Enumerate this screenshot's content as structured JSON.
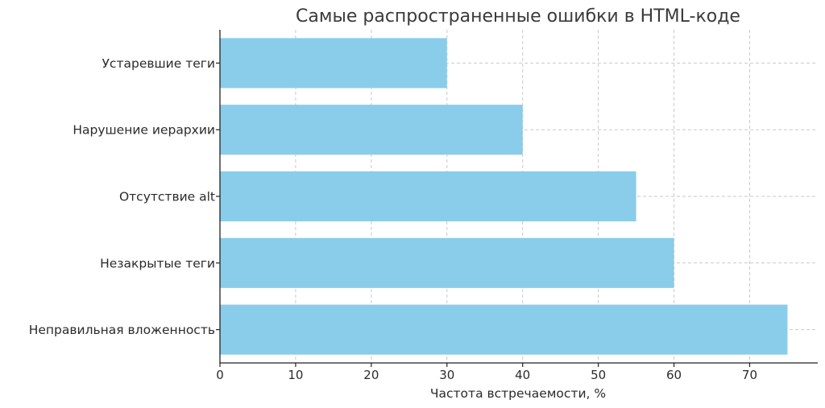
{
  "chart_data": {
    "type": "bar",
    "orientation": "horizontal",
    "title": "Самые распространенные ошибки в HTML-коде",
    "xlabel": "Частота встречаемости, %",
    "ylabel": "",
    "categories": [
      "Неправильная вложенность",
      "Незакрытые теги",
      "Отсутствие alt",
      "Нарушение иерархии",
      "Устаревшие теги"
    ],
    "values": [
      75,
      60,
      55,
      40,
      30
    ],
    "xlim": [
      0,
      79
    ],
    "xticks": [
      0,
      10,
      20,
      30,
      40,
      50,
      60,
      70
    ],
    "xtick_labels": [
      "0",
      "10",
      "20",
      "30",
      "40",
      "50",
      "60",
      "70"
    ],
    "grid": true,
    "bar_color": "#89CDEA"
  }
}
